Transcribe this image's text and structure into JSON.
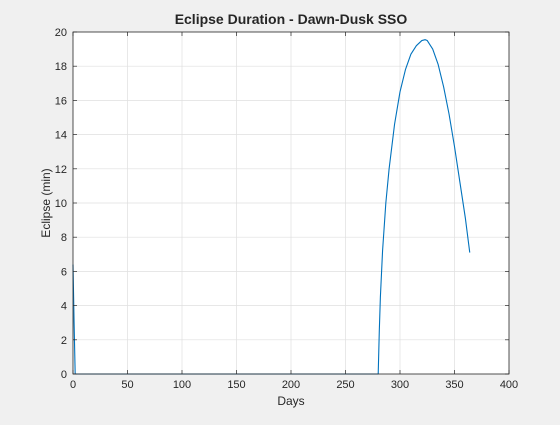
{
  "chart_data": {
    "type": "line",
    "title": "Eclipse Duration - Dawn-Dusk SSO",
    "xlabel": "Days",
    "ylabel": "Eclipse (min)",
    "xlim": [
      0,
      400
    ],
    "ylim": [
      0,
      20
    ],
    "xticks": [
      0,
      50,
      100,
      150,
      200,
      250,
      300,
      350,
      400
    ],
    "yticks": [
      0,
      2,
      4,
      6,
      8,
      10,
      12,
      14,
      16,
      18,
      20
    ],
    "grid": true,
    "legend": "none",
    "colors": {
      "line": "#0072bd",
      "figure_bg": "#f0f0f0",
      "axes_bg": "#ffffff",
      "grid": "#dfdfdf",
      "axis": "#262626"
    },
    "series": [
      {
        "x": [
          0,
          1,
          2,
          3,
          280,
          281,
          282,
          284,
          287,
          290,
          295,
          300,
          305,
          310,
          315,
          320,
          323,
          325,
          328,
          330,
          335,
          340,
          345,
          350,
          355,
          360,
          363,
          364
        ],
        "y": [
          6.4,
          3.0,
          0.0,
          0.0,
          0.0,
          2.5,
          4.5,
          7.2,
          10.0,
          12.0,
          14.6,
          16.5,
          17.8,
          18.7,
          19.2,
          19.5,
          19.55,
          19.5,
          19.2,
          19.0,
          18.1,
          16.8,
          15.2,
          13.3,
          11.2,
          9.1,
          7.6,
          7.1
        ]
      }
    ]
  }
}
